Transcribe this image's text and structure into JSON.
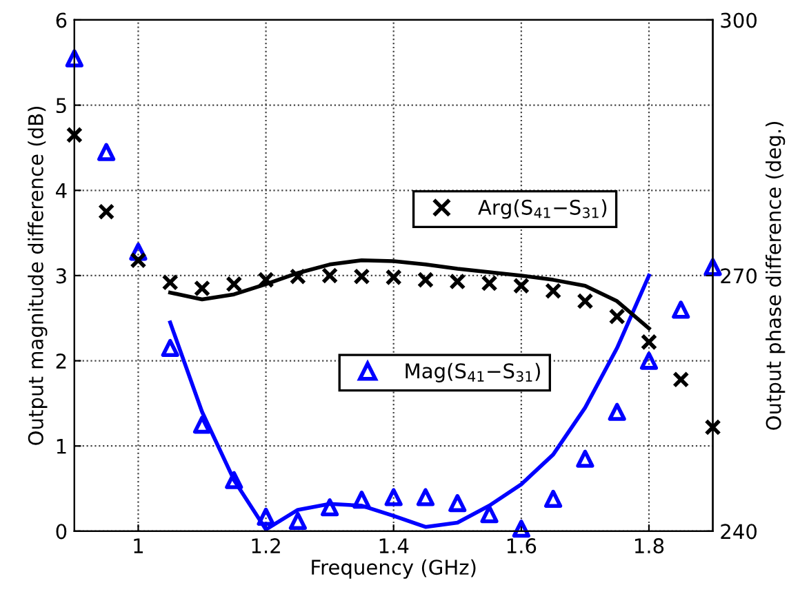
{
  "chart_data": {
    "type": "scatter",
    "xlabel": "Frequency (GHz)",
    "ylabel": "Output magnitude difference (dB)",
    "y2label": "Output phase difference (deg.)",
    "xlim": [
      0.9,
      1.9
    ],
    "xticks": [
      1,
      1.2,
      1.4,
      1.6,
      1.8
    ],
    "ylim": [
      0,
      6
    ],
    "yticks": [
      0,
      1,
      2,
      3,
      4,
      5,
      6
    ],
    "y2lim": [
      240,
      300
    ],
    "y2ticks": [
      240,
      270,
      300
    ],
    "grid": true,
    "legend": "center",
    "series": [
      {
        "name": "Arg(S$_{41}$−S$_{31}$)",
        "axis": "y2",
        "marker": "cross",
        "color": "#000000",
        "x": [
          0.9,
          0.95,
          1.0,
          1.05,
          1.1,
          1.15,
          1.2,
          1.25,
          1.3,
          1.35,
          1.4,
          1.45,
          1.5,
          1.55,
          1.6,
          1.65,
          1.7,
          1.75,
          1.8,
          1.85,
          1.9
        ],
        "values": [
          286.5,
          277.5,
          271.8,
          269.2,
          268.5,
          269,
          269.5,
          269.9,
          270,
          269.9,
          269.8,
          269.5,
          269.3,
          269.1,
          268.8,
          268.2,
          267,
          265.2,
          262.2,
          257.8,
          252.2
        ]
      },
      {
        "type": "line",
        "axis": "y2",
        "color": "#000000",
        "x": [
          1.05,
          1.1,
          1.15,
          1.2,
          1.25,
          1.3,
          1.35,
          1.4,
          1.45,
          1.5,
          1.55,
          1.6,
          1.65,
          1.7,
          1.75,
          1.8
        ],
        "values": [
          268,
          267.2,
          267.8,
          269,
          270.3,
          271.3,
          271.8,
          271.7,
          271.3,
          270.8,
          270.4,
          270,
          269.5,
          268.8,
          267,
          263.8
        ]
      },
      {
        "name": "Mag(S$_{41}$−S$_{31}$)",
        "marker": "triangle",
        "color": "#0000ff",
        "x": [
          0.9,
          0.95,
          1.0,
          1.05,
          1.1,
          1.15,
          1.2,
          1.25,
          1.3,
          1.35,
          1.4,
          1.45,
          1.5,
          1.55,
          1.6,
          1.65,
          1.7,
          1.75,
          1.8,
          1.85,
          1.9
        ],
        "values": [
          5.55,
          4.45,
          3.28,
          2.15,
          1.25,
          0.6,
          0.17,
          0.12,
          0.28,
          0.37,
          0.4,
          0.4,
          0.33,
          0.2,
          0.03,
          0.38,
          0.85,
          1.4,
          2.0,
          2.6,
          3.1
        ]
      },
      {
        "type": "line",
        "color": "#0000ff",
        "x": [
          1.05,
          1.1,
          1.15,
          1.2,
          1.25,
          1.3,
          1.35,
          1.4,
          1.45,
          1.5,
          1.55,
          1.6,
          1.65,
          1.7,
          1.75,
          1.8
        ],
        "values": [
          2.45,
          1.4,
          0.6,
          0.02,
          0.25,
          0.32,
          0.3,
          0.18,
          0.05,
          0.1,
          0.3,
          0.55,
          0.9,
          1.45,
          2.15,
          3.0
        ]
      }
    ]
  }
}
